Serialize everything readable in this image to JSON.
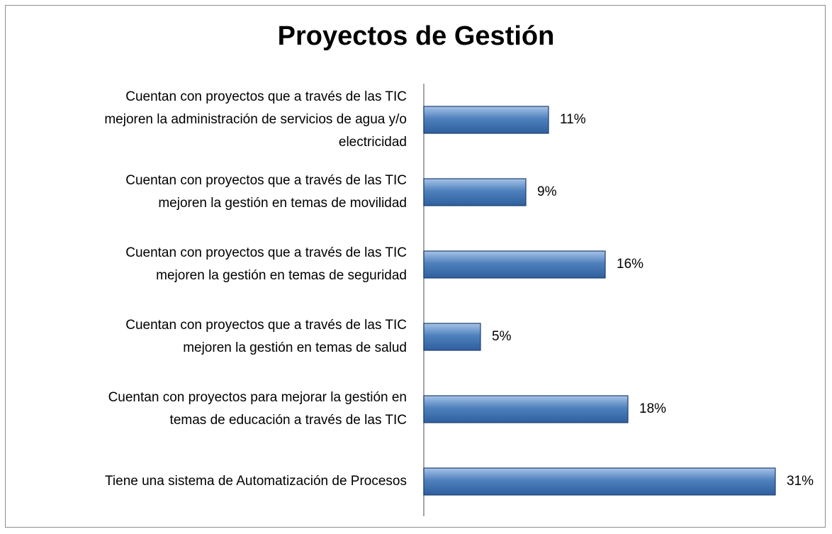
{
  "chart_data": {
    "type": "bar",
    "orientation": "horizontal",
    "title": "Proyectos de Gestión",
    "categories": [
      "Cuentan con proyectos que a través de las TIC\nmejoren la administración de servicios de agua y/o\nelectricidad",
      "Cuentan con proyectos que a través de las TIC\nmejoren la gestión en temas de movilidad",
      "Cuentan con proyectos que a través de las TIC\nmejoren la gestión en temas de seguridad",
      "Cuentan con proyectos que a través de las TIC\nmejoren la gestión en temas de salud",
      "Cuentan con proyectos para mejorar la gestión en\ntemas de educación a través de las TIC",
      "Tiene una sistema de Automatización de Procesos"
    ],
    "values": [
      11,
      9,
      16,
      5,
      18,
      31
    ],
    "value_labels": [
      "11%",
      "9%",
      "16%",
      "5%",
      "18%",
      "31%"
    ],
    "color": "#4f81bd",
    "xlim": [
      0,
      35
    ]
  }
}
